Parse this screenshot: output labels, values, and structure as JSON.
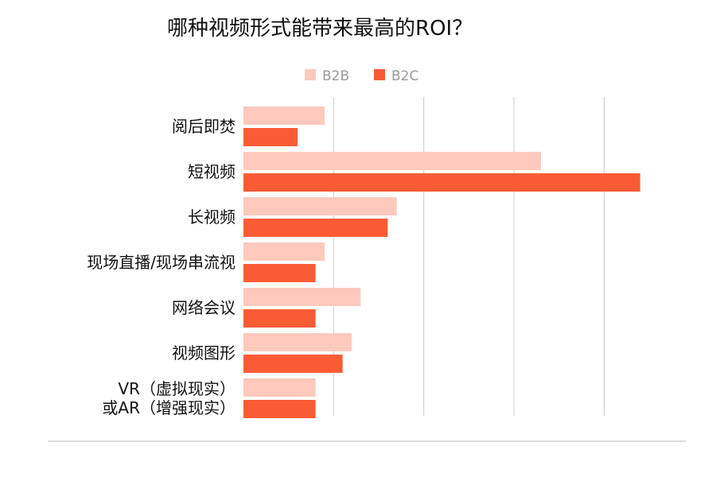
{
  "chart_data": {
    "type": "bar",
    "orientation": "horizontal",
    "title": "哪种视频形式能带来最高的ROI？",
    "categories": [
      "阅后即焚",
      "短视频",
      "长视频",
      "现场直播/现场串流视",
      "网络会议",
      "视频图形",
      "VR（虚拟现实）或AR（增强现实）"
    ],
    "category_lines": [
      [
        "阅后即焚"
      ],
      [
        "短视频"
      ],
      [
        "长视频"
      ],
      [
        "现场直播/现场串流视"
      ],
      [
        "网络会议"
      ],
      [
        "视频图形"
      ],
      [
        "VR（虚拟现实）",
        "或AR（增强现实）"
      ]
    ],
    "series": [
      {
        "name": "B2B",
        "color": "#fcc9bc",
        "values": [
          9,
          33,
          17,
          9,
          13,
          12,
          8
        ]
      },
      {
        "name": "B2C",
        "color": "#f95c35",
        "values": [
          6,
          44,
          16,
          8,
          8,
          11,
          8
        ]
      }
    ],
    "xlim": [
      0,
      45
    ],
    "gridlines": [
      10,
      20,
      30,
      40
    ],
    "grid": true,
    "legend_position": "top"
  }
}
